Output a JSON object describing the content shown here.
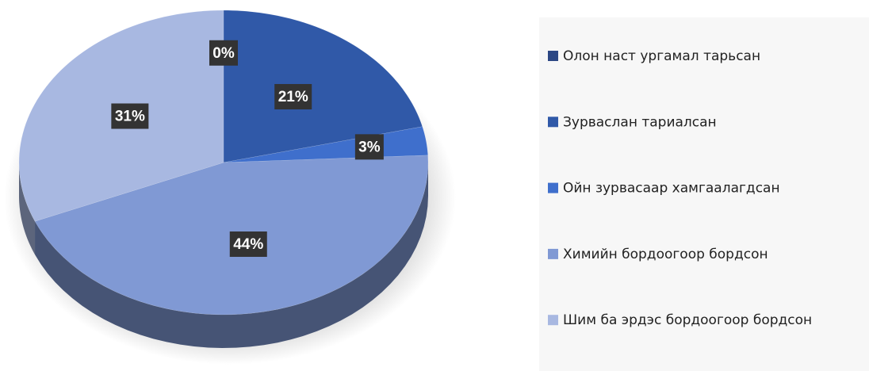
{
  "chart_data": {
    "type": "pie",
    "categories": [
      "Олон наст ургамал тарьсан",
      "Зурваслан тариалсан",
      "Ойн зурвасаар хамгаалагдсан",
      "Химийн бордоогоор бордсон",
      "Шим ба эрдэс бордоогоор бордсон"
    ],
    "values": [
      0,
      21,
      3,
      44,
      31
    ],
    "value_labels": [
      "0%",
      "21%",
      "3%",
      "44%",
      "31%"
    ],
    "colors": [
      "#2c4784",
      "#3059a8",
      "#3f6fcc",
      "#8099d4",
      "#a8b8e1"
    ],
    "legend": "right"
  }
}
